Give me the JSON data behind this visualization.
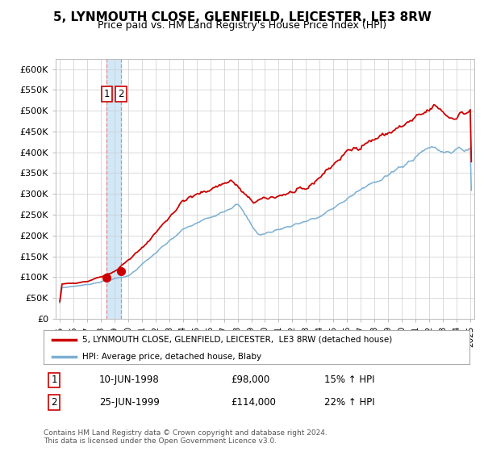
{
  "title": "5, LYNMOUTH CLOSE, GLENFIELD, LEICESTER, LE3 8RW",
  "subtitle": "Price paid vs. HM Land Registry's House Price Index (HPI)",
  "ylabel_ticks": [
    "£0",
    "£50K",
    "£100K",
    "£150K",
    "£200K",
    "£250K",
    "£300K",
    "£350K",
    "£400K",
    "£450K",
    "£500K",
    "£550K",
    "£600K"
  ],
  "ytick_values": [
    0,
    50000,
    100000,
    150000,
    200000,
    250000,
    300000,
    350000,
    400000,
    450000,
    500000,
    550000,
    600000
  ],
  "ylim": [
    0,
    625000
  ],
  "xlim_start": 1994.7,
  "xlim_end": 2025.3,
  "sale1_date": 1998.44,
  "sale1_price": 98000,
  "sale1_label": "1",
  "sale2_date": 1999.48,
  "sale2_price": 114000,
  "sale2_label": "2",
  "legend_line1": "5, LYNMOUTH CLOSE, GLENFIELD, LEICESTER,  LE3 8RW (detached house)",
  "legend_line2": "HPI: Average price, detached house, Blaby",
  "table_row1": [
    "1",
    "10-JUN-1998",
    "£98,000",
    "15% ↑ HPI"
  ],
  "table_row2": [
    "2",
    "25-JUN-1999",
    "£114,000",
    "22% ↑ HPI"
  ],
  "footer": "Contains HM Land Registry data © Crown copyright and database right 2024.\nThis data is licensed under the Open Government Licence v3.0.",
  "line_color_red": "#cc0000",
  "line_color_blue": "#7bafd4",
  "marker_color_red": "#cc0000",
  "grid_color": "#cccccc",
  "background_color": "#ffffff",
  "vline_color": "#e88888",
  "vband_color": "#d0e8f8"
}
